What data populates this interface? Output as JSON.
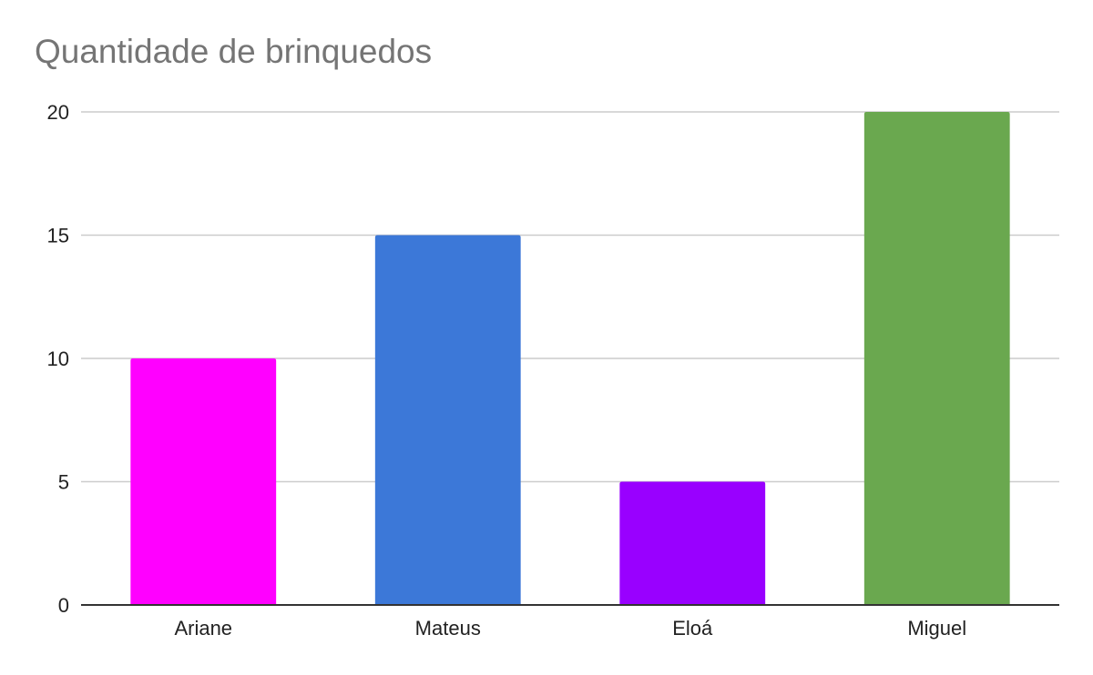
{
  "chart_data": {
    "type": "bar",
    "title": "Quantidade de brinquedos",
    "xlabel": "",
    "ylabel": "",
    "categories": [
      "Ariane",
      "Mateus",
      "Eloá",
      "Miguel"
    ],
    "values": [
      10,
      15,
      5,
      20
    ],
    "colors": [
      "#ff00ff",
      "#3c78d8",
      "#9900ff",
      "#6aa84f"
    ],
    "ylim": [
      0,
      20
    ],
    "yticks": [
      0,
      5,
      10,
      15,
      20
    ],
    "grid": true,
    "legend": "none"
  }
}
